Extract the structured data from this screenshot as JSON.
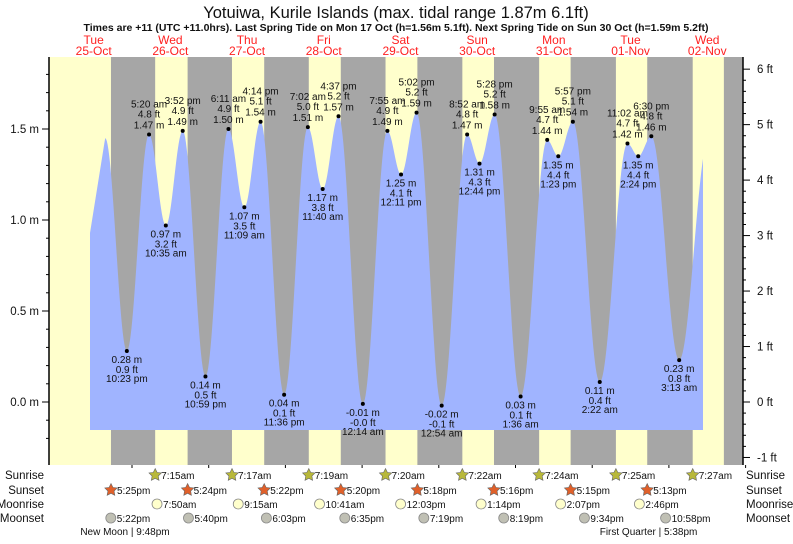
{
  "title": "Yotuiwa, Kurile Islands (max. tidal range 1.87m 6.1ft)",
  "subtitle": "Times are +11 (UTC +11.0hrs). Last Spring Tide on Mon 17 Oct (h=1.56m 5.1ft). Next Spring Tide on Sun 30 Oct (h=1.59m 5.2ft)",
  "colors": {
    "day": "#ffffcc",
    "night": "#a6a6a6",
    "water": "#a0b4ff",
    "date": "#ff2020",
    "sunrise": "#b8b83a",
    "sunset": "#e0602a",
    "moonrise": "#ffffcc",
    "moonset": "#c0c0b4"
  },
  "chart_data": {
    "type": "area",
    "title": "Yotuiwa, Kurile Islands (max. tidal range 1.87m 6.1ft)",
    "days": [
      {
        "dow": "Tue",
        "date": "25-Oct"
      },
      {
        "dow": "Wed",
        "date": "26-Oct"
      },
      {
        "dow": "Thu",
        "date": "27-Oct"
      },
      {
        "dow": "Fri",
        "date": "28-Oct"
      },
      {
        "dow": "Sat",
        "date": "29-Oct"
      },
      {
        "dow": "Sun",
        "date": "30-Oct"
      },
      {
        "dow": "Mon",
        "date": "31-Oct"
      },
      {
        "dow": "Tue",
        "date": "01-Nov"
      },
      {
        "dow": "Wed",
        "date": "02-Nov"
      }
    ],
    "y_left": {
      "unit": "m",
      "ticks": [
        "0.0 m",
        "0.5 m",
        "1.0 m",
        "1.5 m"
      ],
      "values": [
        0,
        0.5,
        1.0,
        1.5
      ],
      "ylim": [
        -0.23,
        1.92
      ]
    },
    "y_right": {
      "unit": "ft",
      "ticks": [
        "-1 ft",
        "0 ft",
        "1 ft",
        "2 ft",
        "3 ft",
        "4 ft",
        "5 ft",
        "6 ft"
      ],
      "values": [
        -1,
        0,
        1,
        2,
        3,
        4,
        5,
        6
      ]
    },
    "extremes": [
      {
        "day": 0,
        "time": "10:23 pm",
        "m": "0.28 m",
        "ft": "0.9 ft",
        "height": 0.28,
        "type": "low"
      },
      {
        "day": 1,
        "time": "5:20 am",
        "m": "1.47 m",
        "ft": "4.8 ft",
        "height": 1.47,
        "type": "high"
      },
      {
        "day": 1,
        "time": "10:35 am",
        "m": "0.97 m",
        "ft": "3.2 ft",
        "height": 0.97,
        "type": "low"
      },
      {
        "day": 1,
        "time": "3:52 pm",
        "m": "1.49 m",
        "ft": "4.9 ft",
        "height": 1.49,
        "type": "high"
      },
      {
        "day": 1,
        "time": "10:59 pm",
        "m": "0.14 m",
        "ft": "0.5 ft",
        "height": 0.14,
        "type": "low"
      },
      {
        "day": 2,
        "time": "6:11 am",
        "m": "1.50 m",
        "ft": "4.9 ft",
        "height": 1.5,
        "type": "high"
      },
      {
        "day": 2,
        "time": "11:09 am",
        "m": "1.07 m",
        "ft": "3.5 ft",
        "height": 1.07,
        "type": "low"
      },
      {
        "day": 2,
        "time": "4:14 pm",
        "m": "1.54 m",
        "ft": "5.1 ft",
        "height": 1.54,
        "type": "high"
      },
      {
        "day": 2,
        "time": "11:36 pm",
        "m": "0.04 m",
        "ft": "0.1 ft",
        "height": 0.04,
        "type": "low"
      },
      {
        "day": 3,
        "time": "7:02 am",
        "m": "1.51 m",
        "ft": "5.0 ft",
        "height": 1.51,
        "type": "high"
      },
      {
        "day": 3,
        "time": "11:40 am",
        "m": "1.17 m",
        "ft": "3.8 ft",
        "height": 1.17,
        "type": "low"
      },
      {
        "day": 3,
        "time": "4:37 pm",
        "m": "1.57 m",
        "ft": "5.2 ft",
        "height": 1.57,
        "type": "high"
      },
      {
        "day": 4,
        "time": "12:14 am",
        "m": "-0.01 m",
        "ft": "-0.0 ft",
        "height": -0.01,
        "type": "low"
      },
      {
        "day": 4,
        "time": "7:55 am",
        "m": "1.49 m",
        "ft": "4.9 ft",
        "height": 1.49,
        "type": "high"
      },
      {
        "day": 4,
        "time": "12:11 pm",
        "m": "1.25 m",
        "ft": "4.1 ft",
        "height": 1.25,
        "type": "low"
      },
      {
        "day": 4,
        "time": "5:02 pm",
        "m": "1.59 m",
        "ft": "5.2 ft",
        "height": 1.59,
        "type": "high"
      },
      {
        "day": 5,
        "time": "12:54 am",
        "m": "-0.02 m",
        "ft": "-0.1 ft",
        "height": -0.02,
        "type": "low"
      },
      {
        "day": 5,
        "time": "8:52 am",
        "m": "1.47 m",
        "ft": "4.8 ft",
        "height": 1.47,
        "type": "high"
      },
      {
        "day": 5,
        "time": "12:44 pm",
        "m": "1.31 m",
        "ft": "4.3 ft",
        "height": 1.31,
        "type": "low"
      },
      {
        "day": 5,
        "time": "5:28 pm",
        "m": "1.58 m",
        "ft": "5.2 ft",
        "height": 1.58,
        "type": "high"
      },
      {
        "day": 6,
        "time": "1:36 am",
        "m": "0.03 m",
        "ft": "0.1 ft",
        "height": 0.03,
        "type": "low"
      },
      {
        "day": 6,
        "time": "9:55 am",
        "m": "1.44 m",
        "ft": "4.7 ft",
        "height": 1.44,
        "type": "high"
      },
      {
        "day": 6,
        "time": "1:23 pm",
        "m": "1.35 m",
        "ft": "4.4 ft",
        "height": 1.35,
        "type": "low"
      },
      {
        "day": 6,
        "time": "5:57 pm",
        "m": "1.54 m",
        "ft": "5.1 ft",
        "height": 1.54,
        "type": "high"
      },
      {
        "day": 7,
        "time": "2:22 am",
        "m": "0.11 m",
        "ft": "0.4 ft",
        "height": 0.11,
        "type": "low"
      },
      {
        "day": 7,
        "time": "11:02 am",
        "m": "1.42 m",
        "ft": "4.7 ft",
        "height": 1.42,
        "type": "high"
      },
      {
        "day": 7,
        "time": "2:24 pm",
        "m": "1.35 m",
        "ft": "4.4 ft",
        "height": 1.35,
        "type": "low"
      },
      {
        "day": 7,
        "time": "6:30 pm",
        "m": "1.46 m",
        "ft": "4.8 ft",
        "height": 1.46,
        "type": "high"
      },
      {
        "day": 8,
        "time": "3:13 am",
        "m": "0.23 m",
        "ft": "0.8 ft",
        "height": 0.23,
        "type": "low"
      }
    ]
  },
  "almanac": {
    "row_labels": {
      "sunrise": "Sunrise",
      "sunset": "Sunset",
      "moonrise": "Moonrise",
      "moonset": "Moonset"
    },
    "sunrise": [
      {
        "day": 1,
        "time": "7:15am"
      },
      {
        "day": 2,
        "time": "7:17am"
      },
      {
        "day": 3,
        "time": "7:19am"
      },
      {
        "day": 4,
        "time": "7:20am"
      },
      {
        "day": 5,
        "time": "7:22am"
      },
      {
        "day": 6,
        "time": "7:24am"
      },
      {
        "day": 7,
        "time": "7:25am"
      },
      {
        "day": 8,
        "time": "7:27am"
      }
    ],
    "sunset": [
      {
        "day": 0,
        "time": "5:25pm"
      },
      {
        "day": 1,
        "time": "5:24pm"
      },
      {
        "day": 2,
        "time": "5:22pm"
      },
      {
        "day": 3,
        "time": "5:20pm"
      },
      {
        "day": 4,
        "time": "5:18pm"
      },
      {
        "day": 5,
        "time": "5:16pm"
      },
      {
        "day": 6,
        "time": "5:15pm"
      },
      {
        "day": 7,
        "time": "5:13pm"
      }
    ],
    "moonrise": [
      {
        "day": 1,
        "time": "7:50am"
      },
      {
        "day": 2,
        "time": "9:15am"
      },
      {
        "day": 3,
        "time": "10:41am"
      },
      {
        "day": 4,
        "time": "12:03pm"
      },
      {
        "day": 5,
        "time": "1:14pm"
      },
      {
        "day": 6,
        "time": "2:07pm"
      },
      {
        "day": 7,
        "time": "2:46pm"
      }
    ],
    "moonset": [
      {
        "day": 0,
        "time": "5:22pm"
      },
      {
        "day": 1,
        "time": "5:40pm"
      },
      {
        "day": 2,
        "time": "6:03pm"
      },
      {
        "day": 3,
        "time": "6:35pm"
      },
      {
        "day": 4,
        "time": "7:19pm"
      },
      {
        "day": 5,
        "time": "8:19pm"
      },
      {
        "day": 6,
        "time": "9:34pm"
      },
      {
        "day": 7,
        "time": "10:58pm"
      }
    ],
    "phases": [
      {
        "day": 0,
        "time": "9:48pm",
        "label": "New Moon | 9:48pm"
      },
      {
        "day": 7,
        "time": "5:38pm",
        "label": "First Quarter | 5:38pm"
      }
    ]
  }
}
